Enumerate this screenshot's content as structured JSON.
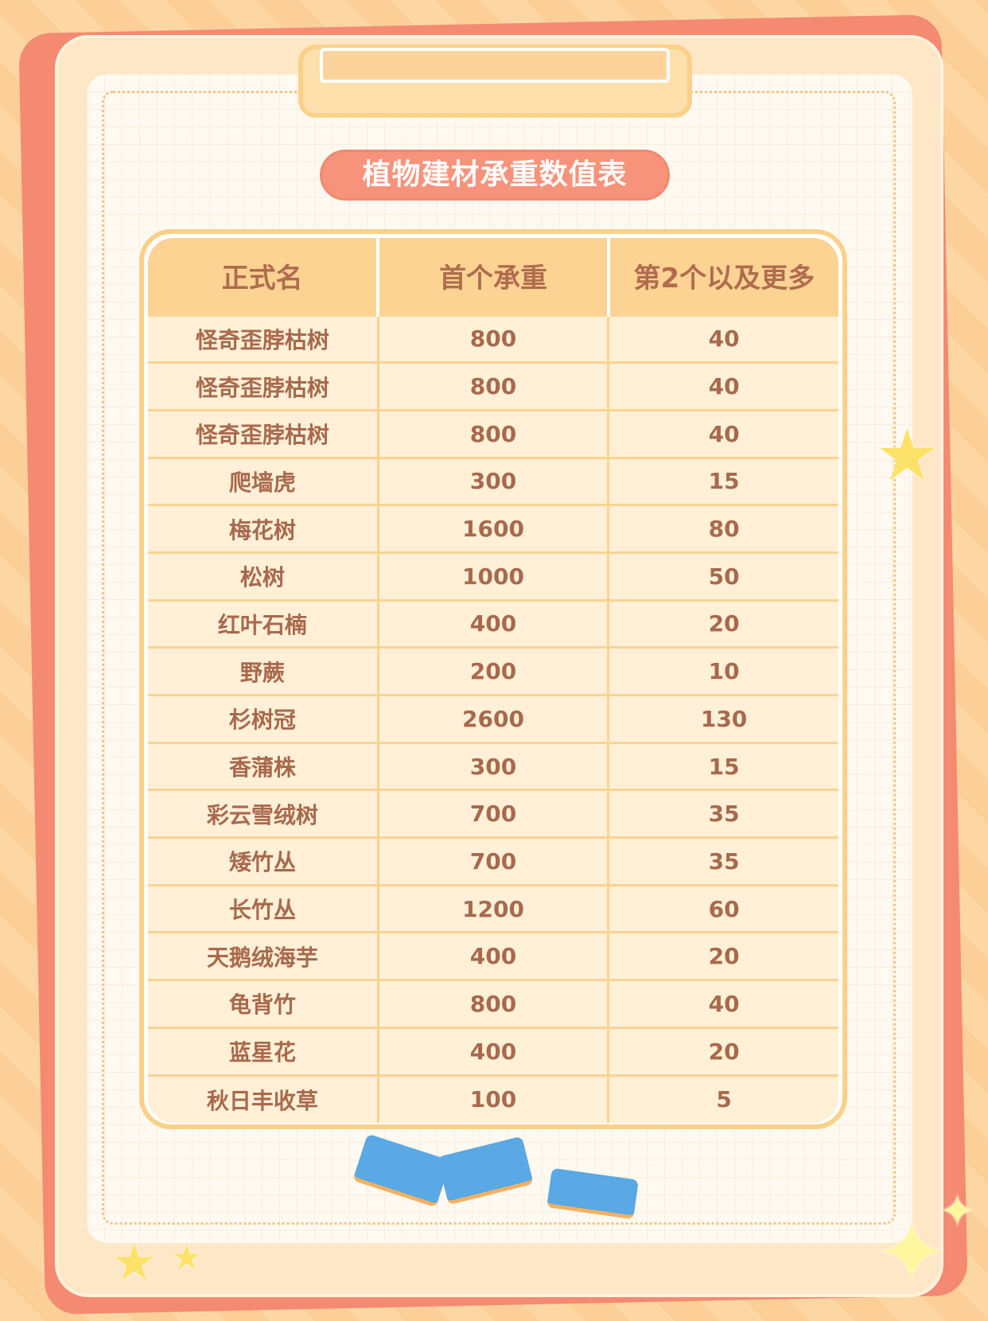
{
  "title": "植物建材承重数值表",
  "table": {
    "headers": [
      "正式名",
      "首个承重",
      "第2个以及更多"
    ],
    "rows": [
      [
        "怪奇歪脖枯树",
        "800",
        "40"
      ],
      [
        "怪奇歪脖枯树",
        "800",
        "40"
      ],
      [
        "怪奇歪脖枯树",
        "800",
        "40"
      ],
      [
        "爬墙虎",
        "300",
        "15"
      ],
      [
        "梅花树",
        "1600",
        "80"
      ],
      [
        "松树",
        "1000",
        "50"
      ],
      [
        "红叶石楠",
        "400",
        "20"
      ],
      [
        "野蕨",
        "200",
        "10"
      ],
      [
        "杉树冠",
        "2600",
        "130"
      ],
      [
        "香蒲株",
        "300",
        "15"
      ],
      [
        "彩云雪绒树",
        "700",
        "35"
      ],
      [
        "矮竹丛",
        "700",
        "35"
      ],
      [
        "长竹丛",
        "1200",
        "60"
      ],
      [
        "天鹅绒海芋",
        "400",
        "20"
      ],
      [
        "龟背竹",
        "800",
        "40"
      ],
      [
        "蓝星花",
        "400",
        "20"
      ],
      [
        "秋日丰收草",
        "100",
        "5"
      ]
    ]
  },
  "colors": {
    "accent": "#f7937b",
    "header": "#fdd393",
    "row": "#fff0d7",
    "text": "#a8694c"
  }
}
